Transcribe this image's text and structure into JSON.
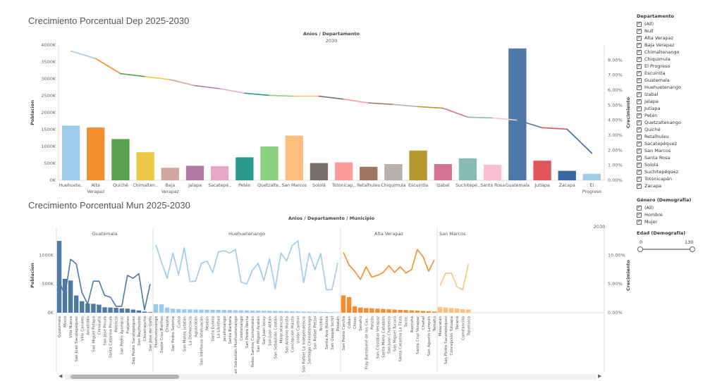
{
  "chart_data": [
    {
      "type": "bar",
      "title": "Crecimiento Porcentual Dep 2025-2030",
      "column_header": "Anios / Departamento",
      "column_value": "2030",
      "ylabel": "Poblacion",
      "y2label": "Crecimiento",
      "ylim": [
        0,
        4000
      ],
      "y2lim": [
        0,
        9
      ],
      "yticks": [
        "0K",
        "500K",
        "1000K",
        "1500K",
        "2000K",
        "2500K",
        "3000K",
        "3500K",
        "4000K"
      ],
      "y2ticks": [
        "0.00%",
        "1.00%",
        "2.00%",
        "3.00%",
        "4.00%",
        "5.00%",
        "6.00%",
        "7.00%",
        "8.00%"
      ],
      "categories": [
        "Huehuete..",
        "Alta Verapaz",
        "Quiché",
        "Chimalten..",
        "Baja Verapaz",
        "Jalapa",
        "Sacatepé..",
        "Petén",
        "Quetzalte..",
        "San Marcos",
        "Sololá",
        "Totonicap..",
        "Retalhuleu",
        "Chiquimula",
        "Escuintla",
        "Izabal",
        "Suchitepé..",
        "Santa Rosa",
        "Guatemala",
        "Jutiapa",
        "Zacapa",
        "El Progreso"
      ],
      "values": [
        1620,
        1560,
        1220,
        830,
        370,
        430,
        420,
        680,
        1000,
        1320,
        510,
        530,
        400,
        480,
        880,
        480,
        650,
        460,
        3900,
        580,
        280,
        190
      ],
      "growth": [
        8.6,
        8.1,
        7.1,
        6.9,
        6.7,
        6.3,
        6.1,
        5.8,
        5.65,
        5.6,
        5.6,
        5.4,
        5.15,
        5.05,
        4.9,
        4.8,
        4.2,
        4.15,
        4.0,
        3.5,
        3.4,
        1.8
      ],
      "colors": [
        "#9ecae9",
        "#f28e2b",
        "#59a14f",
        "#edc948",
        "#d4a6a0",
        "#b07aa1",
        "#e6a8c8",
        "#2a9a8c",
        "#8cd17d",
        "#ffbe7d",
        "#79706e",
        "#ff9d9a",
        "#9d7660",
        "#bab0ac",
        "#b6992d",
        "#d37295",
        "#86bcb6",
        "#fabfd2",
        "#4e79a7",
        "#e15759",
        "#3b67a0",
        "#a0cbe8"
      ]
    },
    {
      "type": "bar",
      "title": "Crecimiento Porcentual Mun 2025-2030",
      "column_header": "Anios / Departamento / Municipio",
      "column_value": "2030",
      "ylabel": "Poblacion",
      "y2label": "Crecimiento",
      "ylim": [
        0,
        1300
      ],
      "y2lim": [
        0,
        13
      ],
      "yticks": [
        "0K",
        "500K",
        "1000K"
      ],
      "y2ticks": [
        "0.00%",
        "5.00%",
        "10.00%"
      ],
      "groups": [
        {
          "name": "Guatemala",
          "color": "#4e79a7",
          "municipios": [
            "Guatemala",
            "Mixco",
            "Villa Nueva",
            "San Juan Sacatepéquez",
            "Villa Canales",
            "Amatitlán",
            "San Miguel Petapa",
            "Chinautla",
            "San José Pinula",
            "Santa Catarina Pinula",
            "Palencia",
            "San Pedro Ayampuc",
            "Fraijanes",
            "San Pedro Sacatepéquez",
            "San Raymundo",
            "Chuarrancho",
            "San José del Golfo"
          ],
          "values": [
            1250,
            590,
            560,
            300,
            200,
            160,
            155,
            140,
            95,
            90,
            85,
            75,
            70,
            55,
            40,
            20,
            10
          ],
          "growth": [
            5.5,
            3.0,
            9.3,
            8.5,
            3.5,
            1.5,
            5.5,
            5.5,
            3.0,
            2.7,
            1.1,
            1.1,
            6.5,
            6.0,
            6.8,
            0.5,
            5.0
          ]
        },
        {
          "name": "Huehuetenango",
          "color": "#9ecae9",
          "municipios": [
            "Huehuetenango",
            "Santa Cruz Barillas",
            "Chiantla",
            "San Pedro Soloma",
            "Cuilco",
            "San Mateo Ixtatán",
            "La Democracia",
            "Aguacatán",
            "San Ildefonso Ixtahuacán",
            "Nentón",
            "Santa Eulalia",
            "La Libertad",
            "Jacaltenango",
            "Santa Bárbara",
            "San Sebastián Huehuetenango",
            "Colotenango",
            "San Pedro Necta",
            "Todos Santos Cuchumatán",
            "San Miguel Acatán",
            "San Juan Ixcoy",
            "San Juan Atitán",
            "San Sebastián Coatán",
            "Malacatancito",
            "San Antonio Huista",
            "Concepción Huista",
            "Unión Cantinil",
            "San Rafael La Independencia",
            "Santiago Chimaltenango",
            "San Rafael Petzal",
            "Tectitán",
            "Santa Ana Huista",
            "San Gaspar Ixchil",
            "Petatán"
          ],
          "values": [
            150,
            145,
            90,
            70,
            65,
            60,
            58,
            56,
            55,
            54,
            52,
            50,
            48,
            46,
            44,
            42,
            40,
            38,
            36,
            34,
            32,
            30,
            28,
            26,
            24,
            22,
            20,
            18,
            16,
            14,
            12,
            10,
            8
          ],
          "growth": [
            11.8,
            8.8,
            6.0,
            10.4,
            6.6,
            11.3,
            5.4,
            5.5,
            8.6,
            9.0,
            7.0,
            10.6,
            10.8,
            10.4,
            11.0,
            5.3,
            5.0,
            7.4,
            8.6,
            5.6,
            9.4,
            4.2,
            10.4,
            9.0,
            11.7,
            12.5,
            5.2,
            10.4,
            7.5,
            10.3,
            4.0,
            4.0,
            8.7
          ]
        },
        {
          "name": "Alta Verapaz",
          "color": "#f28e2b",
          "municipios": [
            "San Pedro Carchá",
            "Cobán",
            "Chisec",
            "Senahú",
            "Fray Bartolomé de las Cas..",
            "Panzós",
            "San Cristóbal Verapaz",
            "Santa María Cahabón",
            "San Juan Chamelco",
            "San Miguel Tucurú",
            "Santa Catarina La Tinta",
            "Tactic",
            "Raxruhá",
            "Santa Cruz Verapaz",
            "Chahal",
            "San Agustín Lanquín",
            "Tamahú"
          ],
          "values": [
            300,
            270,
            110,
            90,
            80,
            75,
            70,
            65,
            60,
            55,
            50,
            45,
            40,
            35,
            30,
            25,
            20
          ],
          "growth": [
            10.5,
            8.3,
            7.2,
            5.8,
            8.0,
            6.2,
            6.5,
            7.0,
            8.2,
            7.0,
            8.0,
            6.9,
            7.5,
            11.0,
            9.8,
            7.2,
            9.2
          ]
        },
        {
          "name": "San Marcos",
          "color": "#ffbe7d",
          "municipios": [
            "Malacatán",
            "San Pedro Sacatepéquez",
            "Concepción Tutuapa",
            "Tacaná",
            "Comitancillo",
            "Tajumulco"
          ],
          "values": [
            100,
            90,
            80,
            75,
            60,
            55
          ],
          "growth": [
            4.7,
            6.9,
            6.9,
            4.5,
            4.0,
            8.5
          ]
        }
      ]
    }
  ],
  "filters": {
    "departamento": {
      "label": "Departamento",
      "options": [
        "(All)",
        "Null",
        "Alta Verapaz",
        "Baja Verapaz",
        "Chimaltenango",
        "Chiquimula",
        "El Progreso",
        "Escuintla",
        "Guatemala",
        "Huehuetenango",
        "Izabal",
        "Jalapa",
        "Jutiapa",
        "Petén",
        "Quetzaltenango",
        "Quiché",
        "Retalhuleu",
        "Sacatepéquez",
        "San Marcos",
        "Santa Rosa",
        "Sololá",
        "Suchitepéquez",
        "Totonicapán",
        "Zacapa"
      ]
    },
    "genero": {
      "label": "Género (Demografía)",
      "options": [
        "(All)",
        "Hombre",
        "Mujer"
      ]
    },
    "edad": {
      "label": "Edad (Demografía)",
      "min": "0",
      "max": "130",
      "min_value": 0,
      "max_value": 130
    }
  }
}
